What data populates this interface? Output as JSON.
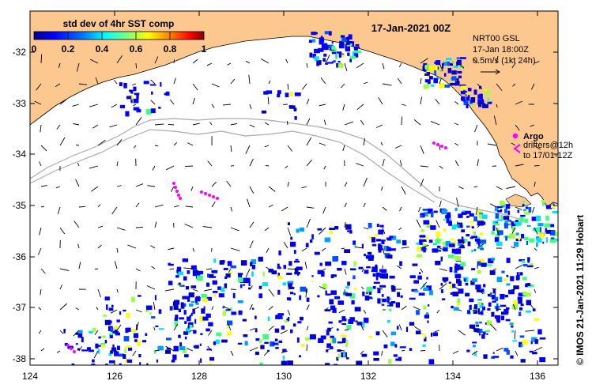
{
  "map": {
    "title": "17-Jan-2021 00Z",
    "colorbar": {
      "label": "std dev of 4hr SST comp",
      "ticks": [
        "0",
        "0.2",
        "0.4",
        "0.6",
        "0.8",
        "1"
      ],
      "values": [
        0,
        0.2,
        0.4,
        0.6,
        0.8,
        1
      ],
      "colors": [
        "#00008f",
        "#0000ff",
        "#0080ff",
        "#00ffff",
        "#80ff80",
        "#ffff00",
        "#ff8000",
        "#ff0000",
        "#800000"
      ]
    },
    "lon_ticks": [
      "124",
      "126",
      "128",
      "130",
      "132",
      "134",
      "136"
    ],
    "lat_ticks": [
      "-32",
      "-33",
      "-34",
      "-35",
      "-36",
      "-37",
      "-38"
    ],
    "lon_range": [
      124,
      136.5
    ],
    "lat_range": [
      -38.1,
      -31.4
    ],
    "info": {
      "line1": "NRT00 GSL",
      "line2": "17-Jan 18:00Z",
      "line3": "0.5m/s (1kt 24h)"
    },
    "legend": {
      "argo": "Argo",
      "drifters_line1": "drifters@12h",
      "drifters_line2": "to 17/01-12Z"
    },
    "credit": "© IMOS 21-Jan-2021 11:29 Hobart",
    "colors": {
      "land": "#fcc890",
      "ocean": "#ffffff",
      "contour": "#aaaaaa",
      "drifter": "#ff00ff",
      "arrow": "#000000"
    }
  }
}
